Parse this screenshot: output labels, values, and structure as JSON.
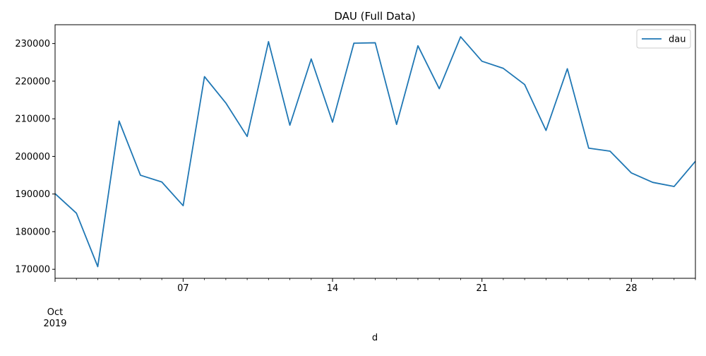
{
  "chart_data": {
    "type": "line",
    "title": "DAU (Full Data)",
    "xlabel": "d",
    "ylabel": "",
    "x": [
      "2019-10-01",
      "2019-10-02",
      "2019-10-03",
      "2019-10-04",
      "2019-10-05",
      "2019-10-06",
      "2019-10-07",
      "2019-10-08",
      "2019-10-09",
      "2019-10-10",
      "2019-10-11",
      "2019-10-12",
      "2019-10-13",
      "2019-10-14",
      "2019-10-15",
      "2019-10-16",
      "2019-10-17",
      "2019-10-18",
      "2019-10-19",
      "2019-10-20",
      "2019-10-21",
      "2019-10-22",
      "2019-10-23",
      "2019-10-24",
      "2019-10-25",
      "2019-10-26",
      "2019-10-27",
      "2019-10-28",
      "2019-10-29",
      "2019-10-30",
      "2019-10-31"
    ],
    "series": [
      {
        "name": "dau",
        "color": "#1f77b4",
        "values": [
          190100,
          184900,
          170700,
          209400,
          195000,
          193200,
          186900,
          221200,
          214200,
          205300,
          230500,
          208300,
          225900,
          209100,
          230100,
          230200,
          208500,
          229400,
          218000,
          231800,
          225300,
          223400,
          219100,
          206900,
          223300,
          202200,
          201400,
          195600,
          193100,
          192000,
          198700
        ]
      }
    ],
    "ylim": [
      167600,
      235000
    ],
    "xlim": [
      "2019-10-01",
      "2019-10-31"
    ],
    "yticks": [
      170000,
      180000,
      190000,
      200000,
      210000,
      220000,
      230000
    ],
    "xticks": [
      {
        "date": "2019-10-01",
        "label": "Oct",
        "sublabel": "2019"
      },
      {
        "date": "2019-10-07",
        "label": "07",
        "sublabel": ""
      },
      {
        "date": "2019-10-14",
        "label": "14",
        "sublabel": ""
      },
      {
        "date": "2019-10-21",
        "label": "21",
        "sublabel": ""
      },
      {
        "date": "2019-10-28",
        "label": "28",
        "sublabel": ""
      }
    ],
    "legend": {
      "position": "top-right",
      "entries": [
        "dau"
      ]
    },
    "grid": false
  }
}
